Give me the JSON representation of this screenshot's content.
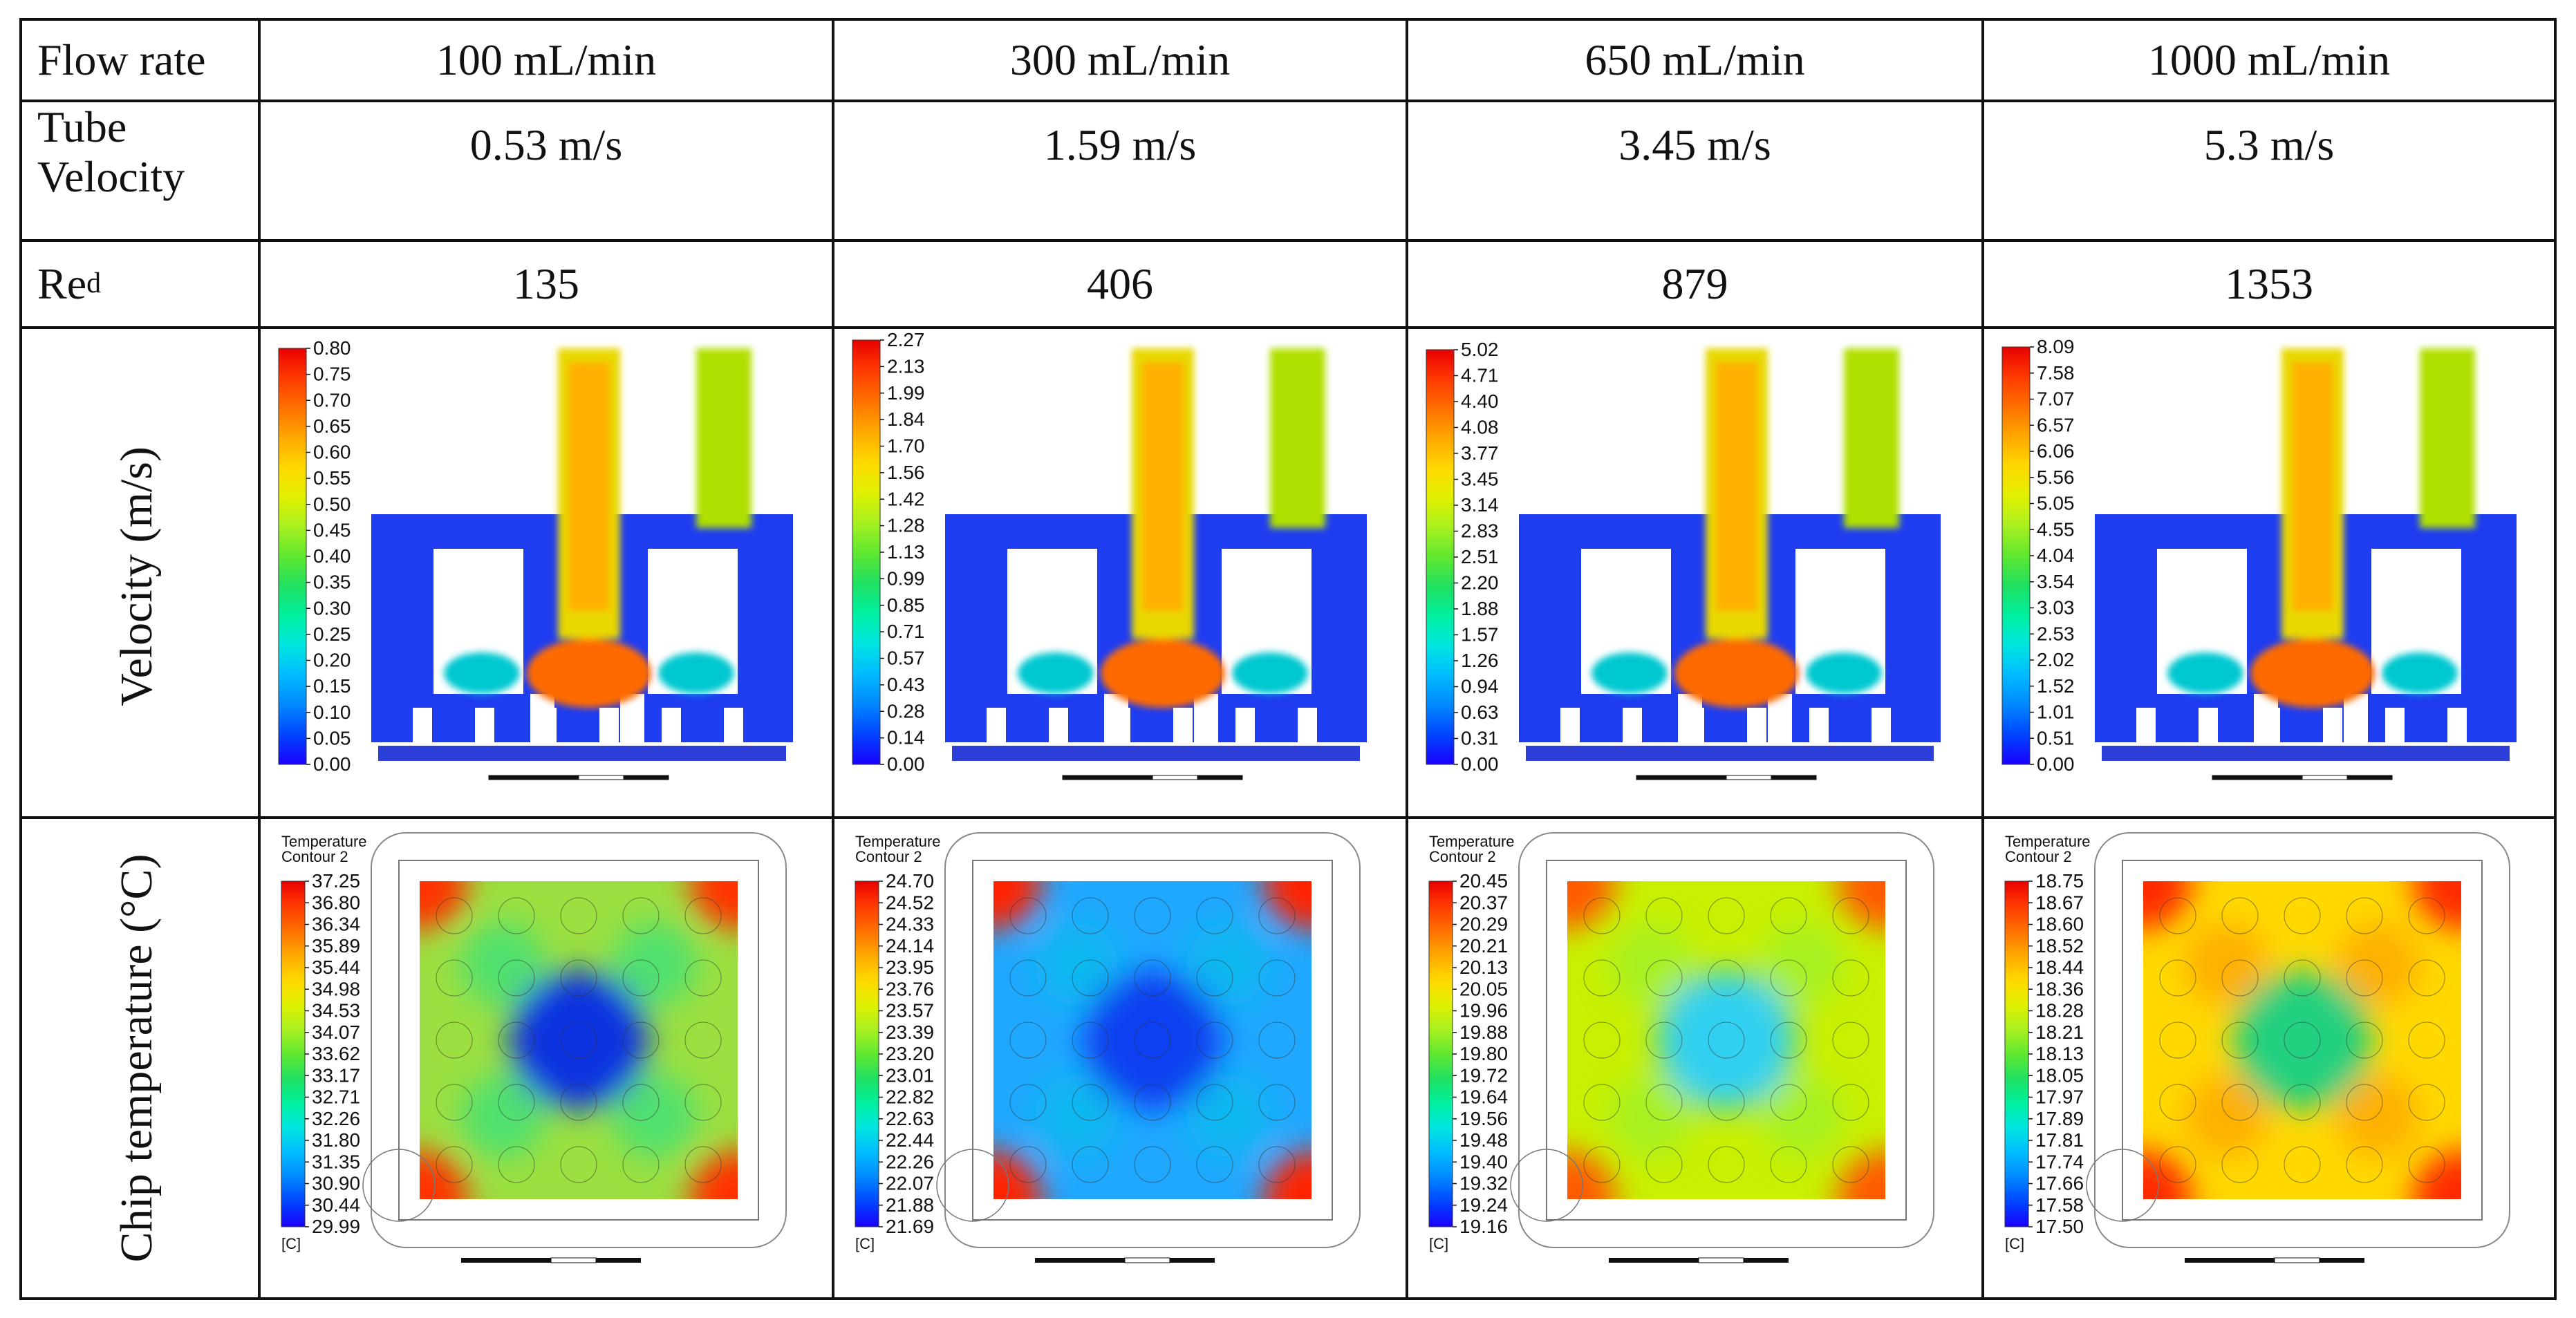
{
  "table": {
    "header_label": "Flow rate",
    "flow_rates": [
      "100 mL/min",
      "300 mL/min",
      "650 mL/min",
      "1000 mL/min"
    ],
    "tube_velocity_label": "Tube Velocity",
    "tube_velocity_label_line1": "Tube",
    "tube_velocity_label_line2": "Velocity",
    "tube_velocities": [
      "0.53 m/s",
      "1.59 m/s",
      "3.45 m/s",
      "5.3 m/s"
    ],
    "re_label_main": "Re",
    "re_label_sub": "d",
    "reynolds": [
      "135",
      "406",
      "879",
      "1353"
    ],
    "velocity_row_label": "Velocity (m/s)",
    "temperature_row_label": "Chip temperature (°C)"
  },
  "velocity_colorbars": [
    [
      "0.80",
      "0.75",
      "0.70",
      "0.65",
      "0.60",
      "0.55",
      "0.50",
      "0.45",
      "0.40",
      "0.35",
      "0.30",
      "0.25",
      "0.20",
      "0.15",
      "0.10",
      "0.05",
      "0.00"
    ],
    [
      "2.27",
      "2.13",
      "1.99",
      "1.84",
      "1.70",
      "1.56",
      "1.42",
      "1.28",
      "1.13",
      "0.99",
      "0.85",
      "0.71",
      "0.57",
      "0.43",
      "0.28",
      "0.14",
      "0.00"
    ],
    [
      "5.02",
      "4.71",
      "4.40",
      "4.08",
      "3.77",
      "3.45",
      "3.14",
      "2.83",
      "2.51",
      "2.20",
      "1.88",
      "1.57",
      "1.26",
      "0.94",
      "0.63",
      "0.31",
      "0.00"
    ],
    [
      "8.09",
      "7.58",
      "7.07",
      "6.57",
      "6.06",
      "5.56",
      "5.05",
      "4.55",
      "4.04",
      "3.54",
      "3.03",
      "2.53",
      "2.02",
      "1.52",
      "1.01",
      "0.51",
      "0.00"
    ]
  ],
  "temperature_colorbars": [
    [
      "37.25",
      "36.80",
      "36.34",
      "35.89",
      "35.44",
      "34.98",
      "34.53",
      "34.07",
      "33.62",
      "33.17",
      "32.71",
      "32.26",
      "31.80",
      "31.35",
      "30.90",
      "30.44",
      "29.99"
    ],
    [
      "24.70",
      "24.52",
      "24.33",
      "24.14",
      "23.95",
      "23.76",
      "23.57",
      "23.39",
      "23.20",
      "23.01",
      "22.82",
      "22.63",
      "22.44",
      "22.26",
      "22.07",
      "21.88",
      "21.69"
    ],
    [
      "20.45",
      "20.37",
      "20.29",
      "20.21",
      "20.13",
      "20.05",
      "19.96",
      "19.88",
      "19.80",
      "19.72",
      "19.64",
      "19.56",
      "19.48",
      "19.40",
      "19.32",
      "19.24",
      "19.16"
    ],
    [
      "18.75",
      "18.67",
      "18.60",
      "18.52",
      "18.44",
      "18.36",
      "18.28",
      "18.21",
      "18.13",
      "18.05",
      "17.97",
      "17.89",
      "17.81",
      "17.74",
      "17.66",
      "17.58",
      "17.50"
    ]
  ],
  "temperature_contour_title": "Temperature",
  "temperature_contour_subtitle": "Contour 2",
  "temperature_unit": "[C]",
  "colors": {
    "grid": "#111111",
    "fluid_low": "#1e3cff",
    "hot": "#ff2a00"
  }
}
